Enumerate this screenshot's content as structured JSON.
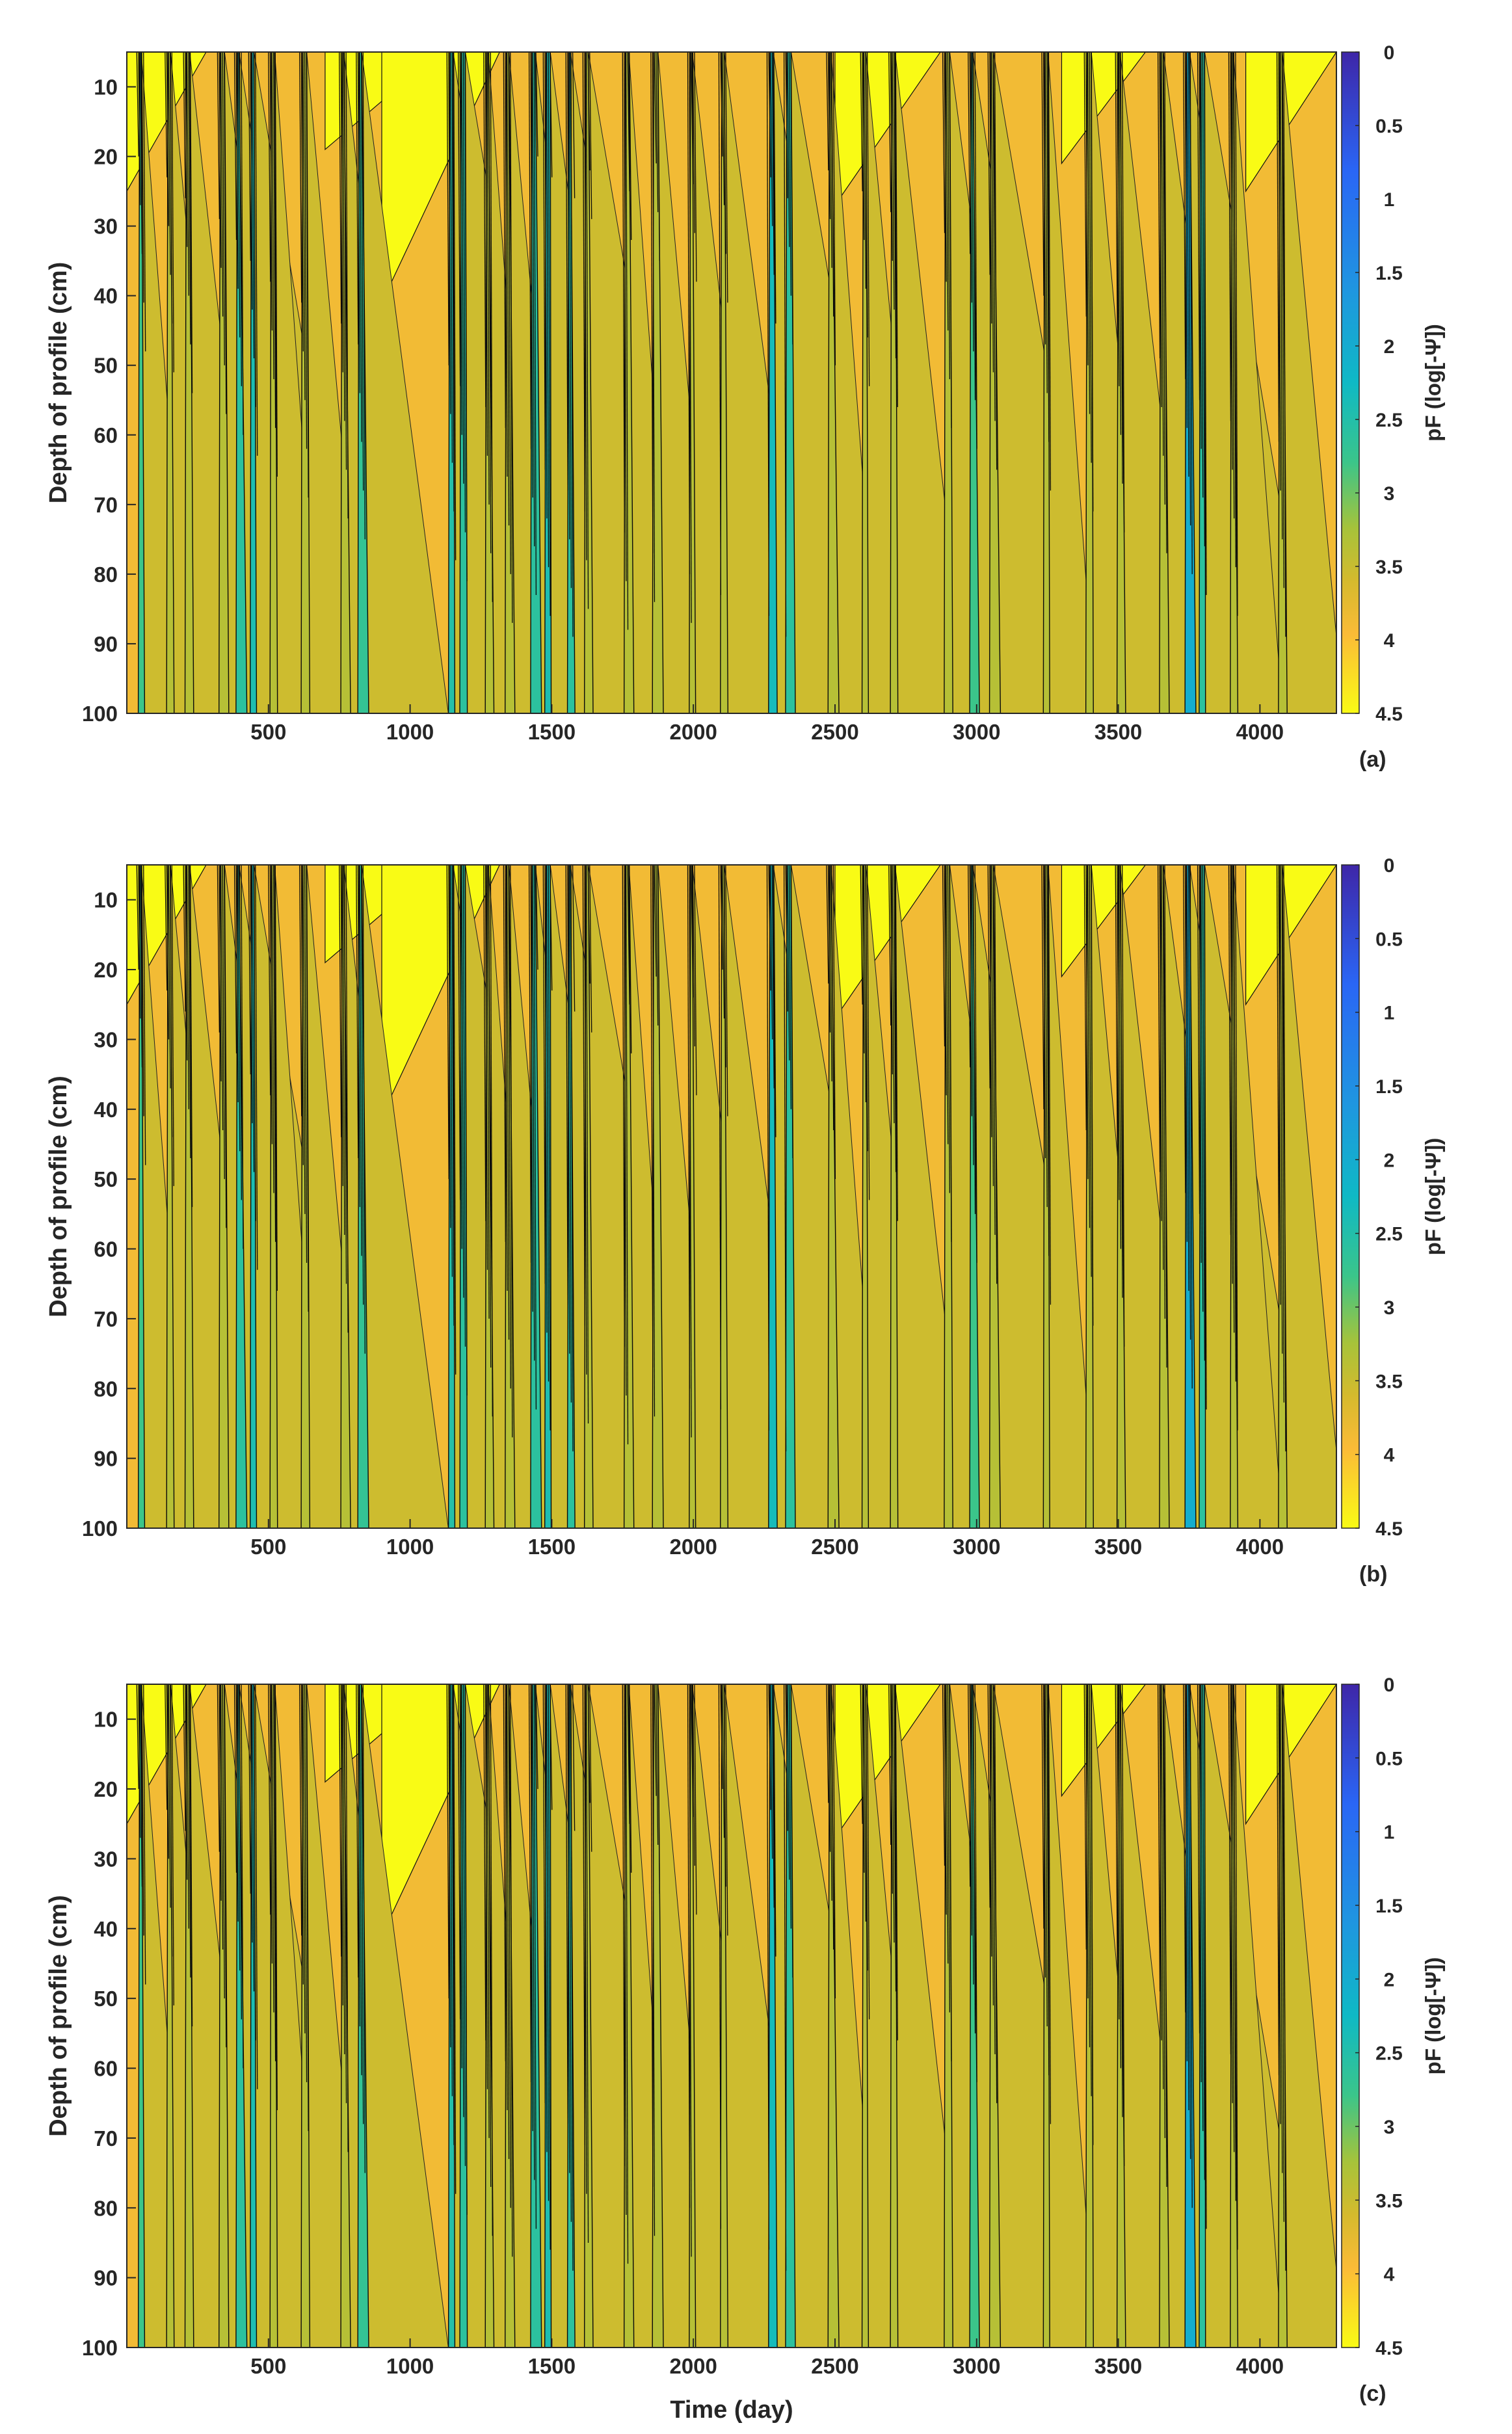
{
  "chart_data": [
    {
      "type": "heatmap",
      "panel_label": "(a)",
      "xlabel": "",
      "ylabel": "Depth of profile (cm)",
      "colorbar_label": "pF (log[-Ψ])",
      "xlim": [
        0,
        4270
      ],
      "ylim": [
        5,
        100
      ],
      "y_reversed": true,
      "x_ticks": [
        500,
        1000,
        1500,
        2000,
        2500,
        3000,
        3500,
        4000
      ],
      "y_ticks": [
        10,
        20,
        30,
        40,
        50,
        60,
        70,
        80,
        90,
        100
      ],
      "colorbar_ticks": [
        "0",
        "0.5",
        "1",
        "1.5",
        "2",
        "2.5",
        "3",
        "3.5",
        "4",
        "4.5"
      ],
      "colorbar_range": [
        0,
        4.5
      ],
      "background_pF": 3.8,
      "dry_zones": [
        [
          0,
          4,
          20
        ],
        [
          700,
          8,
          14
        ],
        [
          900,
          5,
          36
        ],
        [
          2500,
          6,
          22
        ],
        [
          3300,
          5,
          16
        ],
        [
          3950,
          5,
          20
        ]
      ],
      "wet_events": [
        [
          45,
          2.8
        ],
        [
          145,
          3.3
        ],
        [
          210,
          3.3
        ],
        [
          330,
          3.3
        ],
        [
          390,
          2.6
        ],
        [
          440,
          2.4
        ],
        [
          510,
          3.3
        ],
        [
          620,
          3.3
        ],
        [
          760,
          3.3
        ],
        [
          820,
          2.7
        ],
        [
          1140,
          2.5
        ],
        [
          1180,
          2.6
        ],
        [
          1270,
          3.3
        ],
        [
          1340,
          3.3
        ],
        [
          1430,
          2.6
        ],
        [
          1480,
          2.4
        ],
        [
          1560,
          2.6
        ],
        [
          1620,
          3.3
        ],
        [
          1760,
          3.3
        ],
        [
          1860,
          3.3
        ],
        [
          1990,
          3.3
        ],
        [
          2100,
          3.3
        ],
        [
          2270,
          2.3
        ],
        [
          2330,
          2.6
        ],
        [
          2480,
          3.3
        ],
        [
          2600,
          3.3
        ],
        [
          2700,
          3.3
        ],
        [
          2890,
          3.3
        ],
        [
          2980,
          2.8
        ],
        [
          3050,
          3.3
        ],
        [
          3240,
          3.3
        ],
        [
          3390,
          3.3
        ],
        [
          3500,
          3.3
        ],
        [
          3650,
          3.3
        ],
        [
          3740,
          2.0
        ],
        [
          3790,
          2.6
        ],
        [
          3900,
          3.3
        ],
        [
          4070,
          3.3
        ]
      ]
    },
    {
      "type": "heatmap",
      "panel_label": "(b)",
      "xlabel": "",
      "ylabel": "Depth of profile (cm)",
      "colorbar_label": "pF (log[-Ψ])",
      "xlim": [
        0,
        4270
      ],
      "ylim": [
        5,
        100
      ],
      "y_reversed": true,
      "x_ticks": [
        500,
        1000,
        1500,
        2000,
        2500,
        3000,
        3500,
        4000
      ],
      "y_ticks": [
        10,
        20,
        30,
        40,
        50,
        60,
        70,
        80,
        90,
        100
      ],
      "colorbar_ticks": [
        "0",
        "0.5",
        "1",
        "1.5",
        "2",
        "2.5",
        "3",
        "3.5",
        "4",
        "4.5"
      ],
      "colorbar_range": [
        0,
        4.5
      ],
      "background_pF": 3.8,
      "dry_zones": [
        [
          0,
          4,
          20
        ],
        [
          700,
          8,
          14
        ],
        [
          900,
          5,
          36
        ],
        [
          2500,
          6,
          22
        ],
        [
          3300,
          5,
          16
        ],
        [
          3950,
          5,
          20
        ]
      ],
      "wet_events": [
        [
          45,
          2.8
        ],
        [
          145,
          3.3
        ],
        [
          210,
          3.3
        ],
        [
          330,
          3.3
        ],
        [
          390,
          2.6
        ],
        [
          440,
          2.4
        ],
        [
          510,
          3.3
        ],
        [
          620,
          3.3
        ],
        [
          760,
          3.3
        ],
        [
          820,
          2.7
        ],
        [
          1140,
          2.5
        ],
        [
          1180,
          2.6
        ],
        [
          1270,
          3.3
        ],
        [
          1340,
          3.3
        ],
        [
          1430,
          2.6
        ],
        [
          1480,
          2.4
        ],
        [
          1560,
          2.6
        ],
        [
          1620,
          3.3
        ],
        [
          1760,
          3.3
        ],
        [
          1860,
          3.3
        ],
        [
          1990,
          3.3
        ],
        [
          2100,
          3.3
        ],
        [
          2270,
          2.3
        ],
        [
          2330,
          2.6
        ],
        [
          2480,
          3.3
        ],
        [
          2600,
          3.3
        ],
        [
          2700,
          3.3
        ],
        [
          2890,
          3.3
        ],
        [
          2980,
          2.8
        ],
        [
          3050,
          3.3
        ],
        [
          3240,
          3.3
        ],
        [
          3390,
          3.3
        ],
        [
          3500,
          3.3
        ],
        [
          3650,
          3.3
        ],
        [
          3740,
          2.0
        ],
        [
          3790,
          2.6
        ],
        [
          3900,
          3.3
        ],
        [
          4070,
          3.3
        ]
      ]
    },
    {
      "type": "heatmap",
      "panel_label": "(c)",
      "xlabel": "Time (day)",
      "ylabel": "Depth of profile (cm)",
      "colorbar_label": "pF (log[-Ψ])",
      "xlim": [
        0,
        4270
      ],
      "ylim": [
        5,
        100
      ],
      "y_reversed": true,
      "x_ticks": [
        500,
        1000,
        1500,
        2000,
        2500,
        3000,
        3500,
        4000
      ],
      "y_ticks": [
        10,
        20,
        30,
        40,
        50,
        60,
        70,
        80,
        90,
        100
      ],
      "colorbar_ticks": [
        "0",
        "0.5",
        "1",
        "1.5",
        "2",
        "2.5",
        "3",
        "3.5",
        "4",
        "4.5"
      ],
      "colorbar_range": [
        0,
        4.5
      ],
      "background_pF": 3.8,
      "dry_zones": [
        [
          0,
          4,
          20
        ],
        [
          700,
          8,
          14
        ],
        [
          900,
          5,
          36
        ],
        [
          2500,
          6,
          22
        ],
        [
          3300,
          5,
          16
        ],
        [
          3950,
          5,
          20
        ]
      ],
      "wet_events": [
        [
          45,
          2.8
        ],
        [
          145,
          3.3
        ],
        [
          210,
          3.3
        ],
        [
          330,
          3.3
        ],
        [
          390,
          2.6
        ],
        [
          440,
          2.4
        ],
        [
          510,
          3.3
        ],
        [
          620,
          3.3
        ],
        [
          760,
          3.3
        ],
        [
          820,
          2.7
        ],
        [
          1140,
          2.5
        ],
        [
          1180,
          2.6
        ],
        [
          1270,
          3.3
        ],
        [
          1340,
          3.3
        ],
        [
          1430,
          2.6
        ],
        [
          1480,
          2.4
        ],
        [
          1560,
          2.6
        ],
        [
          1620,
          3.3
        ],
        [
          1760,
          3.3
        ],
        [
          1860,
          3.3
        ],
        [
          1990,
          3.3
        ],
        [
          2100,
          3.3
        ],
        [
          2270,
          2.3
        ],
        [
          2330,
          2.6
        ],
        [
          2480,
          3.3
        ],
        [
          2600,
          3.3
        ],
        [
          2700,
          3.3
        ],
        [
          2890,
          3.3
        ],
        [
          2980,
          2.8
        ],
        [
          3050,
          3.3
        ],
        [
          3240,
          3.3
        ],
        [
          3390,
          3.3
        ],
        [
          3500,
          3.3
        ],
        [
          3650,
          3.3
        ],
        [
          3740,
          2.0
        ],
        [
          3790,
          2.6
        ],
        [
          3900,
          3.3
        ],
        [
          4070,
          3.3
        ]
      ]
    }
  ]
}
